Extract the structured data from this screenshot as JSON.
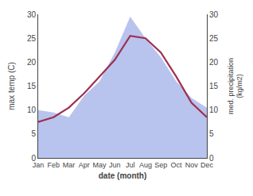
{
  "chart_data": {
    "type": "line",
    "categories": [
      "Jan",
      "Feb",
      "Mar",
      "Apr",
      "May",
      "Jun",
      "Jul",
      "Aug",
      "Sep",
      "Oct",
      "Nov",
      "Dec"
    ],
    "xlabel": "date (month)",
    "ylabel": "max temp (C)",
    "y2label": "med. precipitation\n(kg/m2)",
    "series": [
      {
        "type": "line",
        "color": "#9e3050",
        "values": [
          7.5,
          8.5,
          10.5,
          13.5,
          17.0,
          20.5,
          25.5,
          25.0,
          22.0,
          17.0,
          11.5,
          8.5
        ]
      },
      {
        "type": "area",
        "axis": "y2",
        "color": "#b8c4ee",
        "values": [
          10.0,
          9.5,
          8.5,
          13.0,
          16.0,
          22.0,
          29.5,
          25.0,
          21.0,
          16.0,
          12.5,
          10.5
        ]
      }
    ],
    "ylim": [
      0,
      30
    ],
    "yticks": [
      0,
      5,
      10,
      15,
      20,
      25,
      30
    ],
    "y2lim": [
      0,
      30
    ],
    "y2ticks": [
      0,
      5,
      10,
      15,
      20,
      25,
      30
    ],
    "grid": false
  }
}
